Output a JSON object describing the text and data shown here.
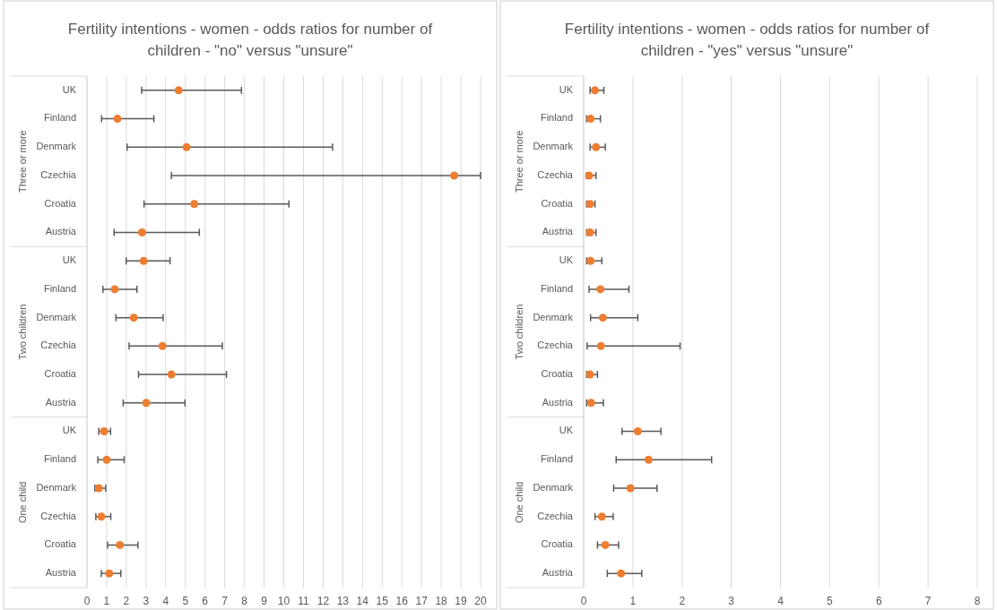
{
  "chart_data": [
    {
      "type": "scatter",
      "orientation": "horizontal",
      "title": "Fertility intentions - women  - odds ratios for number of children - \"no\" versus \"unsure\"",
      "categories": [
        "UK",
        "Finland",
        "Denmark",
        "Czechia",
        "Croatia",
        "Austria",
        "UK",
        "Finland",
        "Denmark",
        "Czechia",
        "Croatia",
        "Austria",
        "UK",
        "Finland",
        "Denmark",
        "Czechia",
        "Croatia",
        "Austria"
      ],
      "annotations": [
        "Three or more",
        "Two children",
        "One child"
      ],
      "series": [
        {
          "color": "#ed7d31",
          "values": [
            4.66,
            1.55,
            5.06,
            18.66,
            5.45,
            2.8,
            2.88,
            1.41,
            2.38,
            3.83,
            4.29,
            3.01,
            0.87,
            1.0,
            0.6,
            0.73,
            1.67,
            1.13
          ],
          "errors": [
            [
              2.78,
              7.85
            ],
            [
              0.74,
              3.4
            ],
            [
              2.04,
              12.48
            ],
            [
              4.29,
              20
            ],
            [
              2.9,
              10.26
            ],
            [
              1.38,
              5.71
            ],
            [
              1.99,
              4.22
            ],
            [
              0.81,
              2.54
            ],
            [
              1.47,
              3.87
            ],
            [
              2.14,
              6.88
            ],
            [
              2.62,
              7.09
            ],
            [
              1.84,
              4.98
            ],
            [
              0.6,
              1.2
            ],
            [
              0.55,
              1.89
            ],
            [
              0.4,
              0.95
            ],
            [
              0.45,
              1.21
            ],
            [
              1.05,
              2.59
            ],
            [
              0.73,
              1.72
            ]
          ]
        }
      ],
      "marker": "circle",
      "grid": "x",
      "xlim": [
        0,
        20
      ],
      "xticks": [
        0,
        1,
        2,
        3,
        4,
        5,
        6,
        7,
        8,
        9,
        10,
        11,
        12,
        13,
        14,
        15,
        16,
        17,
        18,
        19,
        20
      ]
    },
    {
      "type": "scatter",
      "orientation": "horizontal",
      "title": "Fertility intentions - women  - odds ratios for number of children - \"yes\" versus \"unsure\"",
      "categories": [
        "UK",
        "Finland",
        "Denmark",
        "Czechia",
        "Croatia",
        "Austria",
        "UK",
        "Finland",
        "Denmark",
        "Czechia",
        "Croatia",
        "Austria",
        "UK",
        "Finland",
        "Denmark",
        "Czechia",
        "Croatia",
        "Austria"
      ],
      "annotations": [
        "Three or more",
        "Two children",
        "One child"
      ],
      "series": [
        {
          "color": "#ed7d31",
          "values": [
            0.23,
            0.14,
            0.25,
            0.11,
            0.13,
            0.13,
            0.14,
            0.34,
            0.39,
            0.35,
            0.13,
            0.15,
            1.1,
            1.32,
            0.95,
            0.37,
            0.44,
            0.76
          ],
          "errors": [
            [
              0.13,
              0.41
            ],
            [
              0.06,
              0.34
            ],
            [
              0.13,
              0.44
            ],
            [
              0.06,
              0.25
            ],
            [
              0.06,
              0.23
            ],
            [
              0.06,
              0.25
            ],
            [
              0.06,
              0.37
            ],
            [
              0.11,
              0.92
            ],
            [
              0.14,
              1.1
            ],
            [
              0.07,
              1.96
            ],
            [
              0.06,
              0.28
            ],
            [
              0.06,
              0.4
            ],
            [
              0.78,
              1.57
            ],
            [
              0.66,
              2.6
            ],
            [
              0.61,
              1.49
            ],
            [
              0.23,
              0.6
            ],
            [
              0.28,
              0.71
            ],
            [
              0.48,
              1.18
            ]
          ]
        }
      ],
      "marker": "circle",
      "grid": "x",
      "xlim": [
        0,
        8
      ],
      "xticks": [
        0,
        1,
        2,
        3,
        4,
        5,
        6,
        7,
        8
      ]
    }
  ]
}
